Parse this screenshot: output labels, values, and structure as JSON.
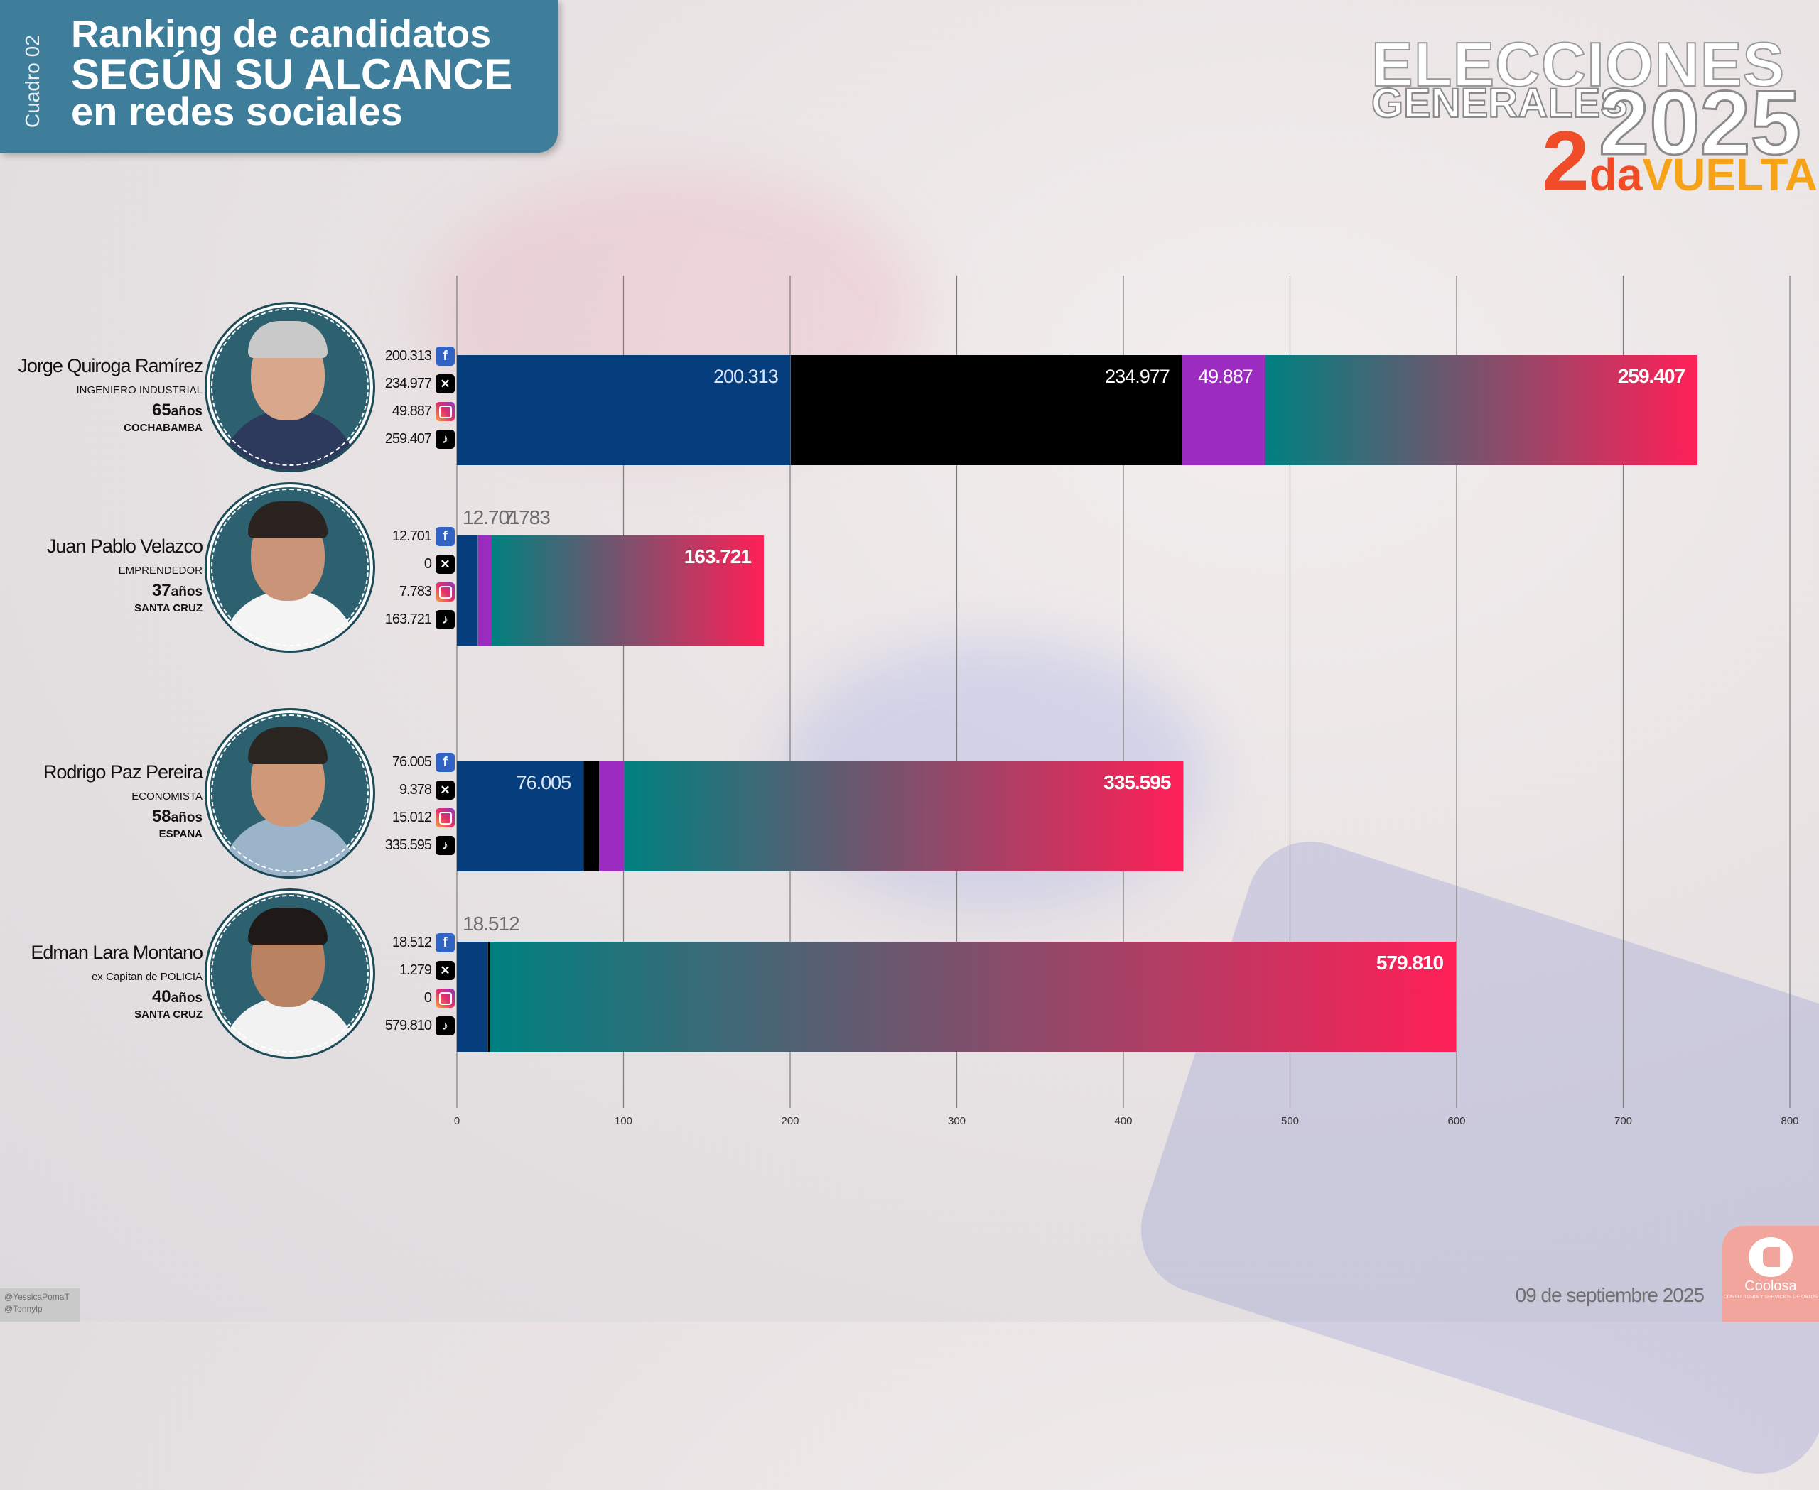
{
  "header": {
    "tag": "Cuadro 02",
    "title_line1": "Ranking de candidatos",
    "title_line2": "SEGÚN SU ALCANCE",
    "title_line3": "en redes sociales"
  },
  "logo": {
    "line1": "ELECCIONES",
    "line2": "GENERALES",
    "year": "2025",
    "round_num": "2",
    "round_suffix": "da",
    "round_word": "VUELTA"
  },
  "candidates": [
    {
      "name": "Jorge Quiroga Ramírez",
      "profession": "INGENIERO INDUSTRIAL",
      "age": "65",
      "age_unit": "años",
      "city": "COCHABAMBA",
      "facebook": "200.313",
      "x": "234.977",
      "instagram": "49.887",
      "tiktok": "259.407"
    },
    {
      "name": "Juan Pablo Velazco",
      "profession": "EMPRENDEDOR",
      "age": "37",
      "age_unit": "años",
      "city": "SANTA CRUZ",
      "facebook": "12.701",
      "x": "0",
      "instagram": "7.783",
      "tiktok": "163.721"
    },
    {
      "name": "Rodrigo Paz Pereira",
      "profession": "ECONOMISTA",
      "age": "58",
      "age_unit": "años",
      "city": "ESPANA",
      "facebook": "76.005",
      "x": "9.378",
      "instagram": "15.012",
      "tiktok": "335.595"
    },
    {
      "name": "Edman Lara Montano",
      "profession": "ex Capitan de POLICIA",
      "age": "40",
      "age_unit": "años",
      "city": "SANTA CRUZ",
      "facebook": "18.512",
      "x": "1.279",
      "instagram": "0",
      "tiktok": "579.810"
    }
  ],
  "chart_data": {
    "type": "bar",
    "orientation": "horizontal",
    "stacked": true,
    "categories": [
      "Jorge Quiroga Ramírez",
      "Juan Pablo Velazco",
      "Rodrigo Paz Pereira",
      "Edman Lara Montano"
    ],
    "series": [
      {
        "key": "facebook",
        "color": "#063d7d",
        "values": [
          200.313,
          12.701,
          76.005,
          18.512
        ],
        "labels": [
          "200.313",
          "12.701",
          "76.005",
          "18.512"
        ],
        "label_shown": [
          true,
          true,
          true,
          true
        ],
        "label_outside": [
          false,
          true,
          false,
          true
        ]
      },
      {
        "key": "x",
        "color": "#000000",
        "values": [
          234.977,
          0,
          9.378,
          1.279
        ],
        "labels": [
          "234.977",
          "",
          "",
          ""
        ],
        "label_shown": [
          true,
          false,
          false,
          false
        ],
        "label_outside": [
          false,
          false,
          false,
          false
        ]
      },
      {
        "key": "instagram",
        "color": "#9c2bbf",
        "values": [
          49.887,
          7.783,
          15.012,
          0
        ],
        "labels": [
          "49.887",
          "7.783",
          "",
          ""
        ],
        "label_shown": [
          true,
          true,
          false,
          false
        ],
        "label_outside": [
          false,
          true,
          false,
          false
        ]
      },
      {
        "key": "tiktok",
        "gradient": [
          "#008080",
          "#ff1f57"
        ],
        "values": [
          259.407,
          163.721,
          335.595,
          579.81
        ],
        "labels": [
          "259.407",
          "163.721",
          "335.595",
          "579.810"
        ],
        "label_shown": [
          true,
          true,
          true,
          true
        ],
        "label_outside": [
          false,
          false,
          false,
          false
        ],
        "bold": true
      }
    ],
    "xlim": [
      0,
      800
    ],
    "xticks": [
      "0",
      "100",
      "200",
      "300",
      "400",
      "500",
      "600",
      "700",
      "800"
    ],
    "grid": true
  },
  "footer": {
    "handle1": "@YessicaPomaT",
    "handle2": "@Tonnylp",
    "date": "09 de septiembre 2025",
    "brand": "Coolosa",
    "brand_sub": "CONSULTORIA Y SERVICIOS DE DATOS"
  }
}
